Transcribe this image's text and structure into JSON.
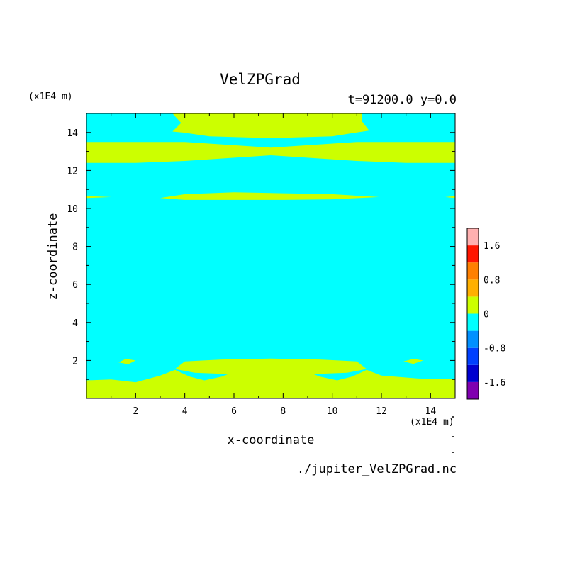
{
  "chart_data": {
    "type": "heatmap",
    "title": "VelZPGrad",
    "subtitle": "t=91200.0 y=0.0",
    "xlabel": "x-coordinate",
    "ylabel": "z-coordinate",
    "x_unit": "(x1E4 m)",
    "y_unit": "(x1E4 m)",
    "xlim": [
      0,
      15
    ],
    "ylim": [
      0,
      15
    ],
    "xticks": [
      2,
      4,
      6,
      8,
      10,
      12,
      14
    ],
    "yticks": [
      2,
      4,
      6,
      8,
      10,
      12,
      14
    ],
    "footer": "./jupiter_VelZPGrad.nc",
    "colorbar": {
      "levels": [
        -2.0,
        -1.6,
        -1.2,
        -0.8,
        -0.4,
        0,
        0.4,
        0.8,
        1.2,
        1.6,
        2.0
      ],
      "colors": [
        "#8000b0",
        "#0000d0",
        "#0040ff",
        "#0090ff",
        "#00ffff",
        "#ccff00",
        "#ffb000",
        "#ff8000",
        "#ff1500",
        "#ffb0b0"
      ],
      "tick_labels": [
        "-1.6",
        "-0.8",
        "0",
        "0.8",
        "1.6"
      ],
      "tick_values": [
        -1.6,
        -0.8,
        0,
        0.8,
        1.6
      ]
    },
    "background_level": "-0.4 to 0",
    "regions": [
      {
        "name": "bottom band",
        "level": "0 to 0.4",
        "outline": [
          [
            0,
            0
          ],
          [
            15,
            0
          ],
          [
            15,
            1.0
          ],
          [
            13.5,
            1.05
          ],
          [
            12,
            1.2
          ],
          [
            11.4,
            1.5
          ],
          [
            10.8,
            1.15
          ],
          [
            10.2,
            0.95
          ],
          [
            9.5,
            1.15
          ],
          [
            9,
            1.4
          ],
          [
            7.5,
            1.52
          ],
          [
            6,
            1.4
          ],
          [
            5.5,
            1.15
          ],
          [
            4.8,
            0.95
          ],
          [
            4.2,
            1.15
          ],
          [
            3.6,
            1.5
          ],
          [
            3,
            1.2
          ],
          [
            2,
            0.85
          ],
          [
            1,
            1.0
          ],
          [
            0,
            0.95
          ]
        ]
      },
      {
        "name": "lower arch",
        "level": "0 to 0.4",
        "outline": [
          [
            3.6,
            1.55
          ],
          [
            4,
            1.95
          ],
          [
            5.5,
            2.05
          ],
          [
            7.5,
            2.1
          ],
          [
            9.5,
            2.05
          ],
          [
            11,
            1.95
          ],
          [
            11.4,
            1.55
          ],
          [
            10.6,
            1.35
          ],
          [
            9.5,
            1.3
          ],
          [
            7.5,
            1.28
          ],
          [
            5.5,
            1.3
          ],
          [
            4.4,
            1.35
          ]
        ]
      },
      {
        "name": "lower left blob",
        "level": "0 to 0.4",
        "outline": [
          [
            1.3,
            1.9
          ],
          [
            1.6,
            2.08
          ],
          [
            2.0,
            2.0
          ],
          [
            1.7,
            1.8
          ]
        ]
      },
      {
        "name": "lower right blob",
        "level": "0 to 0.4",
        "outline": [
          [
            12.9,
            1.95
          ],
          [
            13.3,
            2.08
          ],
          [
            13.7,
            2.0
          ],
          [
            13.3,
            1.82
          ]
        ]
      },
      {
        "name": "mid band",
        "level": "0 to 0.4",
        "outline": [
          [
            3.0,
            10.55
          ],
          [
            4,
            10.75
          ],
          [
            6,
            10.85
          ],
          [
            8,
            10.8
          ],
          [
            10,
            10.75
          ],
          [
            11.9,
            10.6
          ],
          [
            10,
            10.48
          ],
          [
            8,
            10.45
          ],
          [
            6,
            10.45
          ],
          [
            4,
            10.45
          ]
        ]
      },
      {
        "name": "left edge sliver",
        "level": "0 to 0.4",
        "outline": [
          [
            0,
            10.55
          ],
          [
            1.0,
            10.6
          ],
          [
            0,
            10.65
          ]
        ]
      },
      {
        "name": "upper band",
        "level": "0 to 0.4",
        "outline": [
          [
            0,
            13.5
          ],
          [
            2,
            13.5
          ],
          [
            4,
            13.5
          ],
          [
            7.5,
            13.2
          ],
          [
            11,
            13.5
          ],
          [
            13,
            13.5
          ],
          [
            15,
            13.5
          ],
          [
            15,
            12.4
          ],
          [
            13,
            12.4
          ],
          [
            11,
            12.5
          ],
          [
            7.5,
            12.8
          ],
          [
            4,
            12.5
          ],
          [
            2,
            12.4
          ],
          [
            0,
            12.4
          ]
        ]
      },
      {
        "name": "top cap",
        "level": "0 to 0.4",
        "outline": [
          [
            3.5,
            15
          ],
          [
            11.2,
            15
          ],
          [
            11.2,
            14.6
          ],
          [
            11.5,
            14.1
          ],
          [
            11.0,
            14.0
          ],
          [
            10,
            13.8
          ],
          [
            7.5,
            13.7
          ],
          [
            5,
            13.8
          ],
          [
            3.9,
            14.0
          ],
          [
            3.5,
            14.05
          ],
          [
            3.85,
            14.5
          ]
        ]
      },
      {
        "name": "top right sliver",
        "level": "0 to 0.4",
        "outline": [
          [
            14.6,
            10.6
          ],
          [
            15,
            10.55
          ],
          [
            15,
            10.65
          ]
        ]
      }
    ]
  }
}
